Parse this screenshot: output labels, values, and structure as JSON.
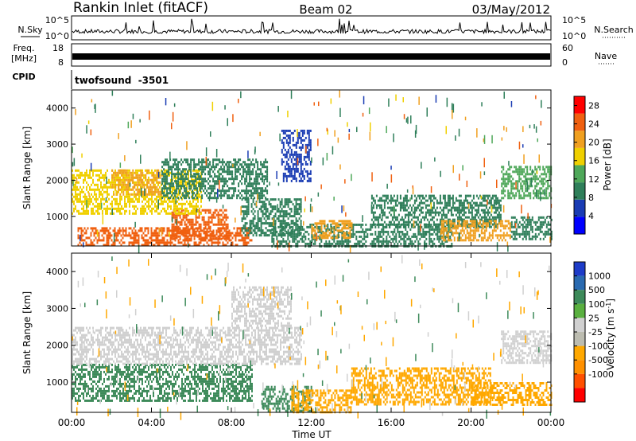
{
  "header": {
    "station": "Rankin Inlet (fitACF)",
    "beam": "Beam 02",
    "date": "03/May/2012"
  },
  "noise_panel": {
    "left_label": "N.Sky",
    "left_ticks": [
      "10^5",
      "10^0"
    ],
    "right_label": "N.Search",
    "right_ticks": [
      "10^5",
      "10^0"
    ]
  },
  "freq_panel": {
    "left_label_line1": "Freq.",
    "left_label_line2": "[MHz]",
    "left_ticks": [
      "18",
      "8"
    ],
    "right_label": "Nave",
    "right_ticks": [
      "60",
      "0"
    ]
  },
  "cpid_panel": {
    "label": "CPID",
    "value": "twofsound  -3501"
  },
  "colors": {
    "power_scale": [
      "#0000ff",
      "#1a3cb4",
      "#2f7f5a",
      "#4fa85a",
      "#f0d000",
      "#f0a020",
      "#f06010",
      "#ff0000"
    ],
    "velocity_scale": [
      "#ff0000",
      "#ff5000",
      "#ff9000",
      "#ffa800",
      "#bcbcb0",
      "#d0d0d0",
      "#5ab040",
      "#3d8a5a",
      "#2a6ab0",
      "#1e3cc8"
    ]
  },
  "chart_data": [
    {
      "type": "heatmap",
      "name": "power",
      "ylabel": "Slant Range [km]",
      "xlim": [
        "00:00",
        "24:00"
      ],
      "ylim": [
        180,
        4500
      ],
      "y_ticks": [
        1000,
        2000,
        3000,
        4000
      ],
      "colorbar": {
        "label": "Power [dB]",
        "ticks": [
          4,
          8,
          12,
          16,
          20,
          24,
          28
        ],
        "range": [
          0,
          30
        ]
      },
      "regions": [
        {
          "t": [
            0.3,
            9.0
          ],
          "r": [
            200,
            700
          ],
          "value": 24
        },
        {
          "t": [
            5.0,
            7.8
          ],
          "r": [
            400,
            1200
          ],
          "value": 26
        },
        {
          "t": [
            0.0,
            6.5
          ],
          "r": [
            1100,
            2300
          ],
          "value": 16
        },
        {
          "t": [
            2.0,
            4.5
          ],
          "r": [
            1600,
            2300
          ],
          "value": 20
        },
        {
          "t": [
            4.5,
            9.8
          ],
          "r": [
            1500,
            2600
          ],
          "value": 10
        },
        {
          "t": [
            8.5,
            11.5
          ],
          "r": [
            500,
            1500
          ],
          "value": 8
        },
        {
          "t": [
            10.5,
            12.0
          ],
          "r": [
            2000,
            3400
          ],
          "value": 5
        },
        {
          "t": [
            10.0,
            19.0
          ],
          "r": [
            200,
            800
          ],
          "value": 11
        },
        {
          "t": [
            12.0,
            14.0
          ],
          "r": [
            400,
            900
          ],
          "value": 21
        },
        {
          "t": [
            15.0,
            21.5
          ],
          "r": [
            700,
            1600
          ],
          "value": 9
        },
        {
          "t": [
            18.5,
            22.0
          ],
          "r": [
            350,
            900
          ],
          "value": 20
        },
        {
          "t": [
            21.5,
            24.0
          ],
          "r": [
            1500,
            2400
          ],
          "value": 14
        },
        {
          "t": [
            22.0,
            24.0
          ],
          "r": [
            400,
            1000
          ],
          "value": 10
        }
      ]
    },
    {
      "type": "heatmap",
      "name": "velocity",
      "ylabel": "Slant Range [km]",
      "xlabel": "Time UT",
      "xlim": [
        "00:00",
        "24:00"
      ],
      "ylim": [
        180,
        4500
      ],
      "y_ticks": [
        1000,
        2000,
        3000,
        4000
      ],
      "x_ticks": [
        "00:00",
        "04:00",
        "08:00",
        "12:00",
        "16:00",
        "20:00",
        "00:00"
      ],
      "colorbar": {
        "label": "Velocity [m s^-1]",
        "ticks": [
          1000,
          500,
          100,
          25,
          -25,
          -100,
          -500,
          -1000
        ]
      },
      "regions": [
        {
          "t": [
            0.0,
            9.0
          ],
          "r": [
            500,
            1500
          ],
          "value": 150
        },
        {
          "t": [
            0.0,
            11.5
          ],
          "r": [
            1500,
            2500
          ],
          "value": 0
        },
        {
          "t": [
            8.0,
            11.0
          ],
          "r": [
            2500,
            3600
          ],
          "value": 0
        },
        {
          "t": [
            9.5,
            12.0
          ],
          "r": [
            200,
            900
          ],
          "value": 150
        },
        {
          "t": [
            11.0,
            14.0
          ],
          "r": [
            200,
            800
          ],
          "value": -150
        },
        {
          "t": [
            14.0,
            21.0
          ],
          "r": [
            400,
            1400
          ],
          "value": -200
        },
        {
          "t": [
            20.0,
            24.0
          ],
          "r": [
            400,
            1000
          ],
          "value": -150
        },
        {
          "t": [
            21.5,
            24.0
          ],
          "r": [
            1500,
            2400
          ],
          "value": 0
        }
      ]
    }
  ]
}
